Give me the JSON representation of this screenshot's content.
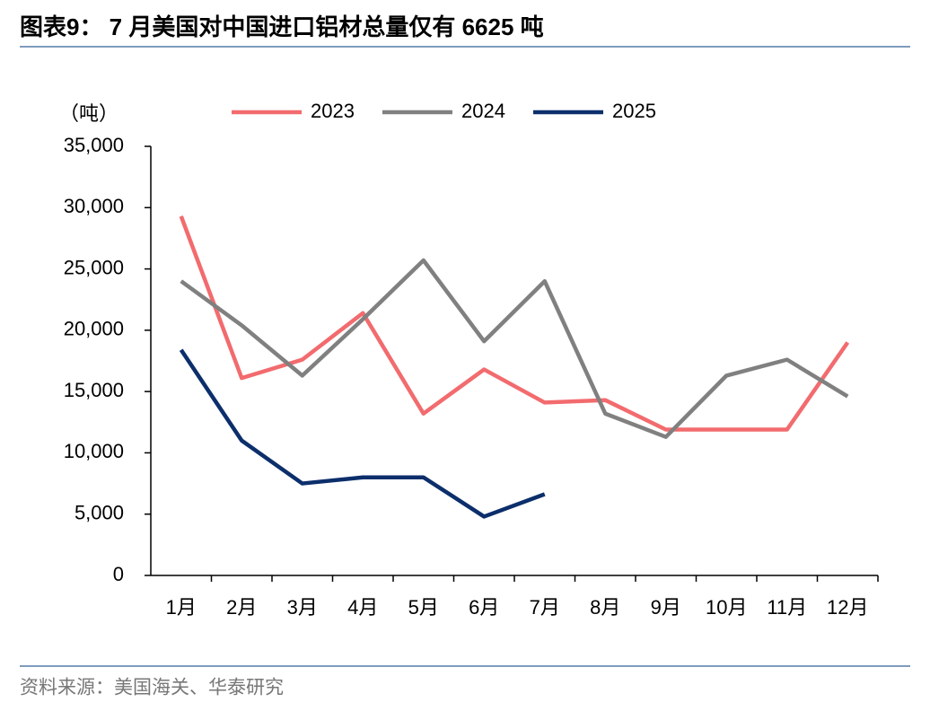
{
  "chart_data": {
    "type": "line",
    "title": "图表9：  7 月美国对中国进口铝材总量仅有 6625 吨",
    "y_label": "（吨）",
    "source": "资料来源：美国海关、华泰研究",
    "categories": [
      "1月",
      "2月",
      "3月",
      "4月",
      "5月",
      "6月",
      "7月",
      "8月",
      "9月",
      "10月",
      "11月",
      "12月"
    ],
    "series": [
      {
        "name": "2023",
        "color": "#f26b6e",
        "values": [
          29300,
          16100,
          17600,
          21400,
          13200,
          16800,
          14100,
          14300,
          11900,
          11900,
          11900,
          19000
        ]
      },
      {
        "name": "2024",
        "color": "#808080",
        "values": [
          24000,
          20400,
          16300,
          20900,
          25700,
          19100,
          24000,
          13200,
          11300,
          16300,
          17600,
          14600
        ]
      },
      {
        "name": "2025",
        "color": "#0c2f6b",
        "values": [
          18400,
          11000,
          7500,
          8000,
          8000,
          4800,
          6625,
          null,
          null,
          null,
          null,
          null
        ]
      }
    ],
    "ylim": [
      0,
      35000
    ],
    "yticks": [
      0,
      {
        "value": 5000,
        "label": "5,000"
      },
      {
        "value": 10000,
        "label": "10,000"
      },
      {
        "value": 15000,
        "label": "15,000"
      },
      {
        "value": 20000,
        "label": "20,000"
      },
      {
        "value": 25000,
        "label": "25,000"
      },
      {
        "value": 30000,
        "label": "30,000"
      },
      {
        "value": 35000,
        "label": "35,000"
      }
    ],
    "legend": "top"
  }
}
